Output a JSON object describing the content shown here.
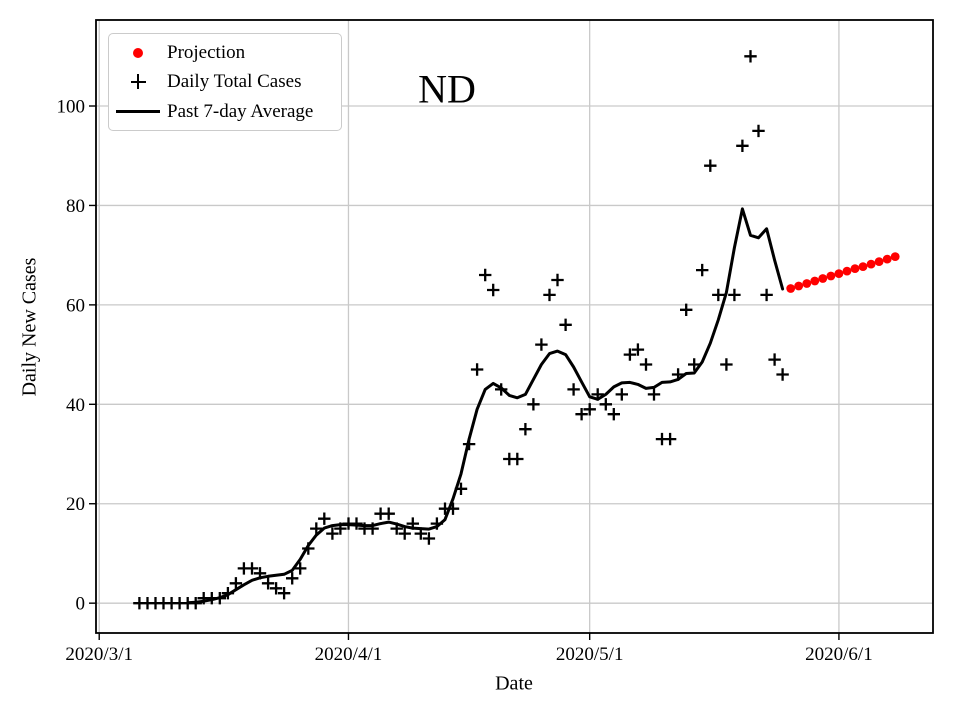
{
  "chart_data": {
    "type": "line",
    "title": "ND",
    "xlabel": "Date",
    "ylabel": "Daily New Cases",
    "x_tick_labels": [
      "2020/3/1",
      "2020/4/1",
      "2020/5/1",
      "2020/6/1"
    ],
    "x_tick_days": [
      0,
      31,
      61,
      92
    ],
    "y_ticks": [
      0,
      20,
      40,
      60,
      80,
      100
    ],
    "xlim_days": [
      -0.4,
      103.7
    ],
    "ylim": [
      -6,
      117.3
    ],
    "grid": true,
    "grid_color": "#c9c9c9",
    "axis_color": "#000000",
    "legend_position": "upper left",
    "series": [
      {
        "name": "Projection",
        "type": "scatter-dot",
        "color": "#ff0000",
        "points": [
          [
            "2020/5/26",
            63.3
          ],
          [
            "2020/5/27",
            63.8
          ],
          [
            "2020/5/28",
            64.3
          ],
          [
            "2020/5/29",
            64.8
          ],
          [
            "2020/5/30",
            65.3
          ],
          [
            "2020/5/31",
            65.8
          ],
          [
            "2020/6/1",
            66.3
          ],
          [
            "2020/6/2",
            66.8
          ],
          [
            "2020/6/3",
            67.3
          ],
          [
            "2020/6/4",
            67.7
          ],
          [
            "2020/6/5",
            68.2
          ],
          [
            "2020/6/6",
            68.7
          ],
          [
            "2020/6/7",
            69.2
          ],
          [
            "2020/6/8",
            69.7
          ]
        ]
      },
      {
        "name": "Daily Total Cases",
        "type": "scatter-plus",
        "color": "#000000",
        "points": [
          [
            "2020/3/6",
            0
          ],
          [
            "2020/3/7",
            0
          ],
          [
            "2020/3/8",
            0
          ],
          [
            "2020/3/9",
            0
          ],
          [
            "2020/3/10",
            0
          ],
          [
            "2020/3/11",
            0
          ],
          [
            "2020/3/12",
            0
          ],
          [
            "2020/3/13",
            0
          ],
          [
            "2020/3/14",
            1
          ],
          [
            "2020/3/15",
            1
          ],
          [
            "2020/3/16",
            1
          ],
          [
            "2020/3/17",
            2
          ],
          [
            "2020/3/18",
            4
          ],
          [
            "2020/3/19",
            7
          ],
          [
            "2020/3/20",
            7
          ],
          [
            "2020/3/21",
            6
          ],
          [
            "2020/3/22",
            4
          ],
          [
            "2020/3/23",
            3
          ],
          [
            "2020/3/24",
            2
          ],
          [
            "2020/3/25",
            5
          ],
          [
            "2020/3/26",
            7
          ],
          [
            "2020/3/27",
            11
          ],
          [
            "2020/3/28",
            15
          ],
          [
            "2020/3/29",
            17
          ],
          [
            "2020/3/30",
            14
          ],
          [
            "2020/3/31",
            15
          ],
          [
            "2020/4/1",
            16
          ],
          [
            "2020/4/2",
            16
          ],
          [
            "2020/4/3",
            15
          ],
          [
            "2020/4/4",
            15
          ],
          [
            "2020/4/5",
            18
          ],
          [
            "2020/4/6",
            18
          ],
          [
            "2020/4/7",
            15
          ],
          [
            "2020/4/8",
            14
          ],
          [
            "2020/4/9",
            16
          ],
          [
            "2020/4/10",
            14
          ],
          [
            "2020/4/11",
            13
          ],
          [
            "2020/4/12",
            16
          ],
          [
            "2020/4/13",
            19
          ],
          [
            "2020/4/14",
            19
          ],
          [
            "2020/4/15",
            23
          ],
          [
            "2020/4/16",
            32
          ],
          [
            "2020/4/17",
            47
          ],
          [
            "2020/4/18",
            66
          ],
          [
            "2020/4/19",
            63
          ],
          [
            "2020/4/20",
            43
          ],
          [
            "2020/4/21",
            29
          ],
          [
            "2020/4/22",
            29
          ],
          [
            "2020/4/23",
            35
          ],
          [
            "2020/4/24",
            40
          ],
          [
            "2020/4/25",
            52
          ],
          [
            "2020/4/26",
            62
          ],
          [
            "2020/4/27",
            65
          ],
          [
            "2020/4/28",
            56
          ],
          [
            "2020/4/29",
            43
          ],
          [
            "2020/4/30",
            38
          ],
          [
            "2020/5/1",
            39
          ],
          [
            "2020/5/2",
            42
          ],
          [
            "2020/5/3",
            40
          ],
          [
            "2020/5/4",
            38
          ],
          [
            "2020/5/5",
            42
          ],
          [
            "2020/5/6",
            50
          ],
          [
            "2020/5/7",
            51
          ],
          [
            "2020/5/8",
            48
          ],
          [
            "2020/5/9",
            42
          ],
          [
            "2020/5/10",
            33
          ],
          [
            "2020/5/11",
            33
          ],
          [
            "2020/5/12",
            46
          ],
          [
            "2020/5/13",
            59
          ],
          [
            "2020/5/14",
            48
          ],
          [
            "2020/5/15",
            67
          ],
          [
            "2020/5/16",
            88
          ],
          [
            "2020/5/17",
            62
          ],
          [
            "2020/5/18",
            48
          ],
          [
            "2020/5/19",
            62
          ],
          [
            "2020/5/20",
            92
          ],
          [
            "2020/5/21",
            110
          ],
          [
            "2020/5/22",
            95
          ],
          [
            "2020/5/23",
            62
          ],
          [
            "2020/5/24",
            49
          ],
          [
            "2020/5/25",
            46
          ]
        ]
      },
      {
        "name": "Past 7-day Average",
        "type": "line",
        "color": "#000000",
        "points": [
          [
            "2020/3/12",
            0.1
          ],
          [
            "2020/3/13",
            0.2
          ],
          [
            "2020/3/14",
            0.4
          ],
          [
            "2020/3/15",
            0.7
          ],
          [
            "2020/3/16",
            1.1
          ],
          [
            "2020/3/17",
            1.7
          ],
          [
            "2020/3/18",
            2.7
          ],
          [
            "2020/3/19",
            3.7
          ],
          [
            "2020/3/20",
            4.6
          ],
          [
            "2020/3/21",
            5.1
          ],
          [
            "2020/3/22",
            5.4
          ],
          [
            "2020/3/23",
            5.6
          ],
          [
            "2020/3/24",
            5.8
          ],
          [
            "2020/3/25",
            6.6
          ],
          [
            "2020/3/26",
            8.8
          ],
          [
            "2020/3/27",
            11.6
          ],
          [
            "2020/3/28",
            13.7
          ],
          [
            "2020/3/29",
            15.1
          ],
          [
            "2020/3/30",
            15.6
          ],
          [
            "2020/3/31",
            15.8
          ],
          [
            "2020/4/1",
            15.8
          ],
          [
            "2020/4/2",
            15.7
          ],
          [
            "2020/4/3",
            15.6
          ],
          [
            "2020/4/4",
            15.6
          ],
          [
            "2020/4/5",
            16.0
          ],
          [
            "2020/4/6",
            16.3
          ],
          [
            "2020/4/7",
            15.9
          ],
          [
            "2020/4/8",
            15.4
          ],
          [
            "2020/4/9",
            15.1
          ],
          [
            "2020/4/10",
            15.0
          ],
          [
            "2020/4/11",
            14.9
          ],
          [
            "2020/4/12",
            15.4
          ],
          [
            "2020/4/13",
            16.8
          ],
          [
            "2020/4/14",
            21.0
          ],
          [
            "2020/4/15",
            26.0
          ],
          [
            "2020/4/16",
            33.0
          ],
          [
            "2020/4/17",
            39.0
          ],
          [
            "2020/4/18",
            43.0
          ],
          [
            "2020/4/19",
            44.2
          ],
          [
            "2020/4/20",
            43.3
          ],
          [
            "2020/4/21",
            41.8
          ],
          [
            "2020/4/22",
            41.3
          ],
          [
            "2020/4/23",
            42.0
          ],
          [
            "2020/4/24",
            45.0
          ],
          [
            "2020/4/25",
            48.0
          ],
          [
            "2020/4/26",
            50.2
          ],
          [
            "2020/4/27",
            50.7
          ],
          [
            "2020/4/28",
            50.0
          ],
          [
            "2020/4/29",
            47.5
          ],
          [
            "2020/4/30",
            44.5
          ],
          [
            "2020/5/1",
            41.5
          ],
          [
            "2020/5/2",
            41.0
          ],
          [
            "2020/5/3",
            42.0
          ],
          [
            "2020/5/4",
            43.5
          ],
          [
            "2020/5/5",
            44.3
          ],
          [
            "2020/5/6",
            44.4
          ],
          [
            "2020/5/7",
            44.0
          ],
          [
            "2020/5/8",
            43.2
          ],
          [
            "2020/5/9",
            43.4
          ],
          [
            "2020/5/10",
            44.4
          ],
          [
            "2020/5/11",
            44.5
          ],
          [
            "2020/5/12",
            45.0
          ],
          [
            "2020/5/13",
            46.2
          ],
          [
            "2020/5/14",
            46.3
          ],
          [
            "2020/5/15",
            48.5
          ],
          [
            "2020/5/16",
            52.3
          ],
          [
            "2020/5/17",
            57.0
          ],
          [
            "2020/5/18",
            62.5
          ],
          [
            "2020/5/19",
            71.5
          ],
          [
            "2020/5/20",
            79.3
          ],
          [
            "2020/5/21",
            74.0
          ],
          [
            "2020/5/22",
            73.5
          ],
          [
            "2020/5/23",
            75.3
          ],
          [
            "2020/5/24",
            69.0
          ],
          [
            "2020/5/25",
            63.2
          ]
        ]
      }
    ]
  }
}
